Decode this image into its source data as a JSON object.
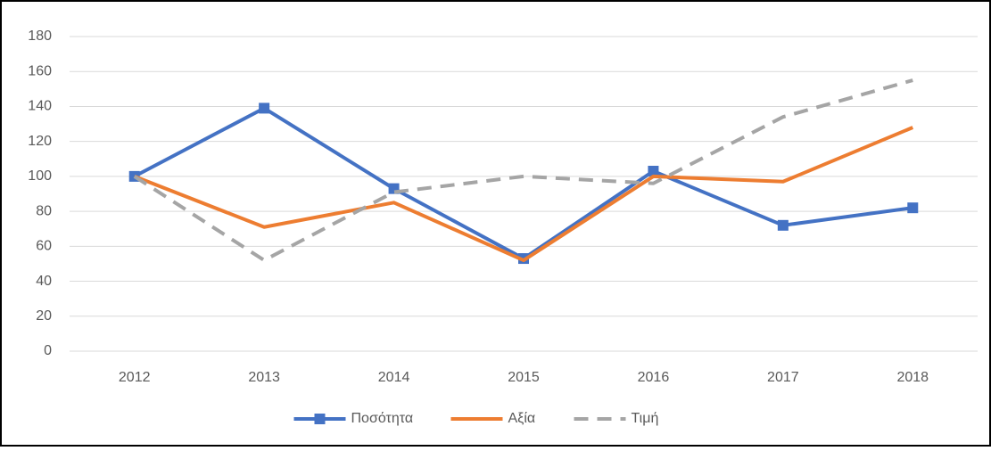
{
  "chart_data": {
    "type": "line",
    "categories": [
      "2012",
      "2013",
      "2014",
      "2015",
      "2016",
      "2017",
      "2018"
    ],
    "series": [
      {
        "name": "Ποσότητα",
        "color": "#4472c4",
        "marker": "square",
        "dash": false,
        "values": [
          100,
          139,
          93,
          53,
          103,
          72,
          82
        ]
      },
      {
        "name": "Αξία",
        "color": "#ed7d31",
        "marker": "none",
        "dash": false,
        "values": [
          100,
          71,
          85,
          52,
          100,
          97,
          128
        ]
      },
      {
        "name": "Τιμή",
        "color": "#a5a5a5",
        "marker": "none",
        "dash": true,
        "values": [
          100,
          52,
          91,
          100,
          96,
          134,
          155
        ]
      }
    ],
    "ylim": [
      0,
      180
    ],
    "yticks": [
      0,
      20,
      40,
      60,
      80,
      100,
      120,
      140,
      160,
      180
    ],
    "grid": true,
    "legend": "bottom"
  }
}
